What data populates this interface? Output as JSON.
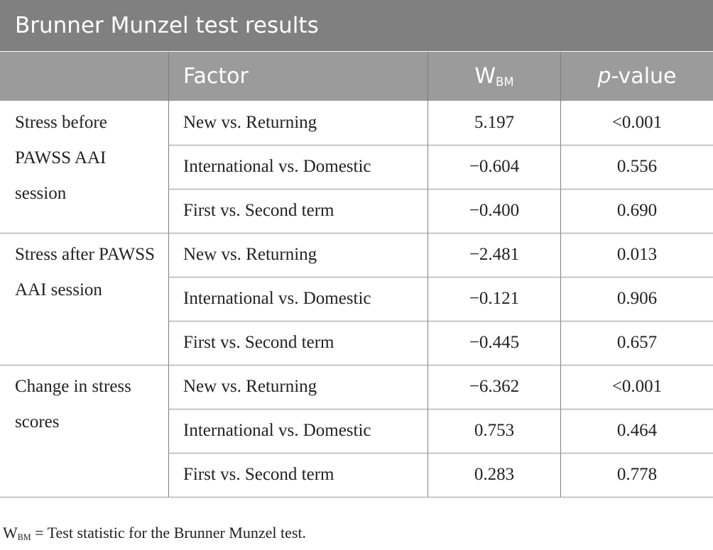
{
  "table": {
    "title": "Brunner Munzel test results",
    "headers": {
      "factor": "Factor",
      "wbm_main": "W",
      "wbm_sub": "BM",
      "pvalue_italic": "p",
      "pvalue_rest": "-value"
    },
    "groups": [
      {
        "label": "Stress before PAWSS AAI session",
        "rows": [
          {
            "factor": "New vs. Returning",
            "wbm": "5.197",
            "p": "<0.001"
          },
          {
            "factor": "International vs. Domestic",
            "wbm": "−0.604",
            "p": "0.556"
          },
          {
            "factor": "First vs. Second term",
            "wbm": "−0.400",
            "p": "0.690"
          }
        ]
      },
      {
        "label": "Stress after PAWSS AAI session",
        "rows": [
          {
            "factor": "New vs. Returning",
            "wbm": "−2.481",
            "p": "0.013"
          },
          {
            "factor": "International vs. Domestic",
            "wbm": "−0.121",
            "p": "0.906"
          },
          {
            "factor": "First vs. Second term",
            "wbm": "−0.445",
            "p": "0.657"
          }
        ]
      },
      {
        "label": "Change in stress scores",
        "rows": [
          {
            "factor": "New vs. Returning",
            "wbm": "−6.362",
            "p": "<0.001"
          },
          {
            "factor": "International vs. Domestic",
            "wbm": "0.753",
            "p": "0.464"
          },
          {
            "factor": "First vs. Second term",
            "wbm": "0.283",
            "p": "0.778"
          }
        ]
      }
    ],
    "footnote": {
      "main": "W",
      "sub": "BM",
      "text": " = Test statistic for the Brunner Munzel test."
    }
  }
}
